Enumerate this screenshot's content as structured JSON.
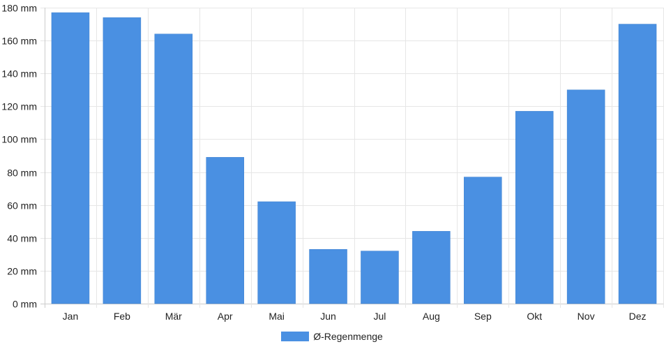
{
  "chart_data": {
    "type": "bar",
    "categories": [
      "Jan",
      "Feb",
      "Mär",
      "Apr",
      "Mai",
      "Jun",
      "Jul",
      "Aug",
      "Sep",
      "Okt",
      "Nov",
      "Dez"
    ],
    "series": [
      {
        "name": "Ø-Regenmenge",
        "values": [
          177,
          174,
          164,
          89,
          62,
          33,
          32,
          44,
          77,
          117,
          130,
          170
        ]
      }
    ],
    "y_unit": "mm",
    "ylim": [
      0,
      180
    ],
    "yticks": [
      0,
      20,
      40,
      60,
      80,
      100,
      120,
      140,
      160,
      180
    ],
    "ytick_labels": [
      "0 mm",
      "20 mm",
      "40 mm",
      "60 mm",
      "80 mm",
      "100 mm",
      "120 mm",
      "140 mm",
      "160 mm",
      "180 mm"
    ],
    "grid": true,
    "legend_position": "bottom-center",
    "colors": {
      "bar": "#4a90e2",
      "grid": "#e6e6e6",
      "axis": "#cccccc"
    }
  }
}
